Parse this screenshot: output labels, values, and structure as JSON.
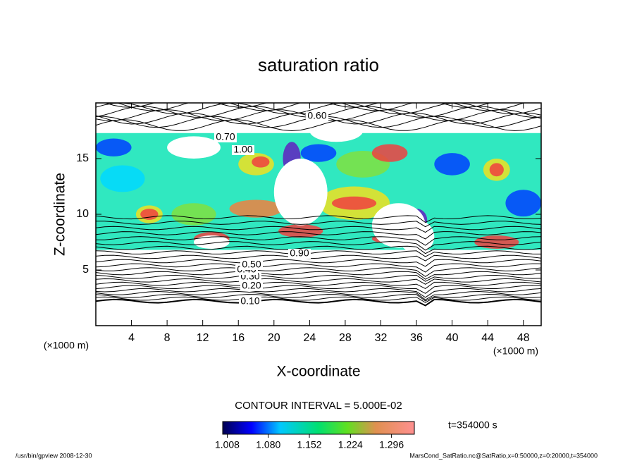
{
  "chart_data": {
    "type": "contour",
    "title": "saturation ratio",
    "x_label": "X-coordinate",
    "y_label": "Z-coordinate",
    "x_unit": "(×1000 m)",
    "y_unit": "(×1000 m)",
    "xlim": [
      0,
      50
    ],
    "xticks": [
      4,
      8,
      12,
      16,
      20,
      24,
      28,
      32,
      36,
      40,
      44,
      48
    ],
    "ylim": [
      0,
      20
    ],
    "yticks": [
      5,
      10,
      15
    ],
    "contour_interval_text": "CONTOUR INTERVAL = 5.000E-02",
    "contour_labels": [
      {
        "value": 0.1,
        "label": "0.10"
      },
      {
        "value": 0.2,
        "label": "0.20"
      },
      {
        "value": 0.3,
        "label": "0.30"
      },
      {
        "value": 0.4,
        "label": "0.40"
      },
      {
        "value": 0.5,
        "label": "0.50"
      },
      {
        "value": 0.6,
        "label": "0.60"
      },
      {
        "value": 0.7,
        "label": "0.70"
      },
      {
        "value": 0.9,
        "label": "0.90"
      },
      {
        "value": 1.0,
        "label": "1.00"
      }
    ],
    "colorbar": {
      "lim": [
        1.0,
        1.336
      ],
      "ticks": [
        1.008,
        {
          "value": 1.08,
          "label": "1.080"
        },
        1.152,
        1.224,
        1.296
      ]
    },
    "time_text": "t=354000 s"
  },
  "footer": {
    "left": "/usr/bin/gpview  2008-12-30",
    "right": "MarsCond_SatRatio.nc@SatRatio,x=0:50000,z=0:20000,t=354000"
  }
}
